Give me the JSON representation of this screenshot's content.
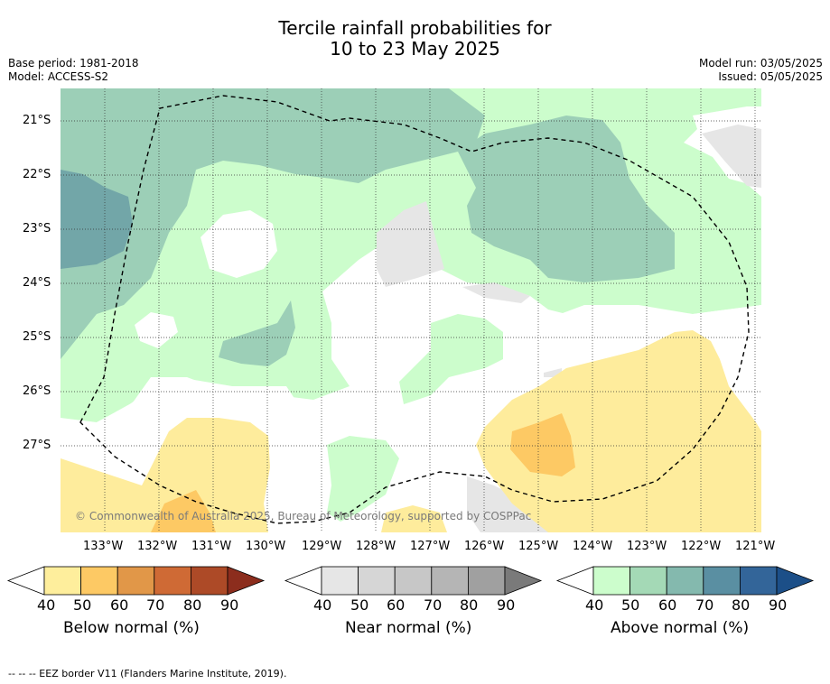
{
  "title_line1": "Tercile rainfall probabilities for",
  "title_line2": "10 to 23 May 2025",
  "meta_left": [
    "Base period: 1981-2018",
    "Model: ACCESS-S2"
  ],
  "meta_right": [
    "Model run: 03/05/2025",
    "Issued: 05/05/2025"
  ],
  "copyright": "© Commonwealth of Australia 2025, Bureau of Meteorology, supported by COSPPac",
  "lat_labels": [
    "21°S",
    "22°S",
    "23°S",
    "24°S",
    "25°S",
    "26°S",
    "27°S"
  ],
  "lon_labels": [
    "133°W",
    "132°W",
    "131°W",
    "130°W",
    "129°W",
    "128°W",
    "127°W",
    "126°W",
    "125°W",
    "124°W",
    "123°W",
    "122°W",
    "121°W"
  ],
  "colorbars": [
    {
      "title": "Below normal (%)",
      "ticks": [
        "40",
        "50",
        "60",
        "70",
        "80",
        "90"
      ],
      "colors": [
        "#ffffff",
        "#feee9c",
        "#fdc964",
        "#e19748",
        "#cf6a35",
        "#ad4a27",
        "#8c2d1d"
      ]
    },
    {
      "title": "Near normal (%)",
      "ticks": [
        "40",
        "50",
        "60",
        "70",
        "80",
        "90"
      ],
      "colors": [
        "#ffffff",
        "#e6e6e6",
        "#d6d6d6",
        "#c7c7c7",
        "#b5b5b5",
        "#a0a0a0",
        "#7a7a7a"
      ]
    },
    {
      "title": "Above normal (%)",
      "ticks": [
        "40",
        "50",
        "60",
        "70",
        "80",
        "90"
      ],
      "colors": [
        "#ffffff",
        "#ccfdcc",
        "#a4d9b6",
        "#84b9ae",
        "#5a8fa2",
        "#336599",
        "#1c4f88"
      ]
    }
  ],
  "footnote": "-- -- -- EEZ border V11 (Flanders Marine Institute, 2019)."
}
